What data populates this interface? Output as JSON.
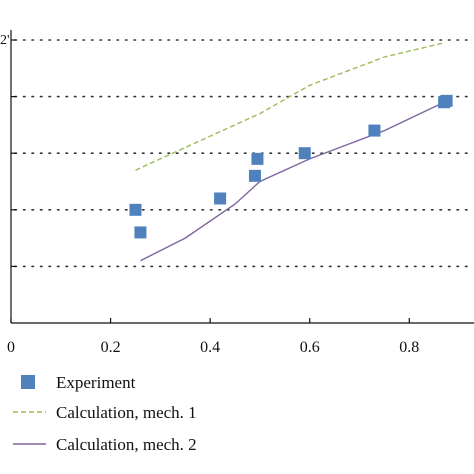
{
  "chart_data": {
    "type": "scatter",
    "title": "",
    "xlabel": "",
    "ylabel": "",
    "top_label_fragment": "2'",
    "xlim": [
      0,
      0.93
    ],
    "ylim": [
      0,
      1
    ],
    "x_ticks": [
      {
        "value": 0,
        "label": "0"
      },
      {
        "value": 0.2,
        "label": "0.2"
      },
      {
        "value": 0.4,
        "label": "0.4"
      },
      {
        "value": 0.6,
        "label": "0.6"
      },
      {
        "value": 0.8,
        "label": "0.8"
      }
    ],
    "y_gridlines": [
      0.2,
      0.4,
      0.6,
      0.8,
      1.0
    ],
    "grid": "horizontal dotted",
    "legend_position": "bottom",
    "series": [
      {
        "name": "Experiment",
        "kind": "markers",
        "color": "#4f81bd",
        "points": [
          {
            "x": 0.25,
            "y": 0.4
          },
          {
            "x": 0.26,
            "y": 0.32
          },
          {
            "x": 0.42,
            "y": 0.44
          },
          {
            "x": 0.49,
            "y": 0.52
          },
          {
            "x": 0.495,
            "y": 0.58
          },
          {
            "x": 0.59,
            "y": 0.6
          },
          {
            "x": 0.73,
            "y": 0.68
          },
          {
            "x": 0.87,
            "y": 0.78
          },
          {
            "x": 0.875,
            "y": 0.785
          }
        ]
      },
      {
        "name": "Calculation, mech. 1",
        "kind": "dashed-line",
        "color": "#9bbb59",
        "points": [
          {
            "x": 0.25,
            "y": 0.54
          },
          {
            "x": 0.35,
            "y": 0.62
          },
          {
            "x": 0.5,
            "y": 0.74
          },
          {
            "x": 0.6,
            "y": 0.84
          },
          {
            "x": 0.75,
            "y": 0.94
          },
          {
            "x": 0.87,
            "y": 0.99
          }
        ]
      },
      {
        "name": "Calculation, mech. 2",
        "kind": "line",
        "color": "#8064a2",
        "points": [
          {
            "x": 0.26,
            "y": 0.22
          },
          {
            "x": 0.35,
            "y": 0.3
          },
          {
            "x": 0.45,
            "y": 0.42
          },
          {
            "x": 0.5,
            "y": 0.5
          },
          {
            "x": 0.6,
            "y": 0.58
          },
          {
            "x": 0.75,
            "y": 0.68
          },
          {
            "x": 0.87,
            "y": 0.78
          }
        ]
      }
    ]
  }
}
